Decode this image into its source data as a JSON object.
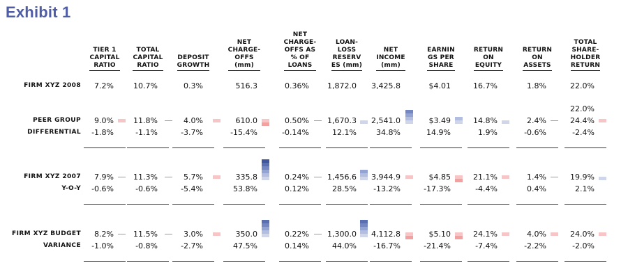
{
  "title": "Exhibit 1",
  "columns": [
    "TIER 1 CAPITAL RATIO",
    "TOTAL CAPITAL RATIO",
    "DEPOSIT GROWTH",
    "NET CHARGE-OFFS (mm)",
    "NET CHARGE-OFFS AS % OF LOANS",
    "LOAN-LOSS RESERVES (mm)",
    "NET INCOME (mm)",
    "EARNINGS PER SHARE",
    "RETURN ON EQUITY",
    "RETURN ON ASSETS",
    "TOTAL SHARE-HOLDER RETURN"
  ],
  "header_lines": [
    [
      "TIER 1",
      "CAPITAL",
      "RATIO"
    ],
    [
      "TOTAL",
      "CAPITAL",
      "RATIO"
    ],
    [
      "DEPOSIT",
      "GROWTH"
    ],
    [
      "NET",
      "CHARGE-",
      "OFFS",
      "(mm)"
    ],
    [
      "NET",
      "CHARGE-",
      "OFFS AS",
      "% OF",
      "LOANS"
    ],
    [
      "LOAN-",
      "LOSS",
      "RESERV",
      "ES (mm)"
    ],
    [
      "NET",
      "INCOME",
      "(mm)"
    ],
    [
      "EARNIN",
      "GS PER",
      "SHARE"
    ],
    [
      "RETURN",
      "ON",
      "EQUITY"
    ],
    [
      "RETURN",
      "ON",
      "ASSETS"
    ],
    [
      "TOTAL",
      "SHARE-",
      "HOLDER",
      "RETURN"
    ]
  ],
  "firm_2008": {
    "label": "FIRM XYZ 2008",
    "values": [
      "7.2%",
      "10.7%",
      "0.3%",
      "516.3",
      "0.36%",
      "1,872.0",
      "3,425.8",
      "$4.01",
      "16.7%",
      "1.8%",
      "22.0%"
    ]
  },
  "groups": [
    {
      "label": "PEER GROUP",
      "diff_label": "DIFFERENTIAL",
      "extra_top": "22.0%",
      "values": [
        "9.0%",
        "11.8%",
        "4.0%",
        "610.0",
        "0.50%",
        "1,670.3",
        "2,541.0",
        "$3.49",
        "14.8%",
        "2.4%",
        "24.4%"
      ],
      "diffs": [
        "-1.8%",
        "-1.1%",
        "-3.7%",
        "-15.4%",
        "-0.14%",
        "12.1%",
        "34.8%",
        "14.9%",
        "1.9%",
        "-0.6%",
        "-2.4%"
      ]
    },
    {
      "label": "FIRM XYZ 2007",
      "diff_label": "Y-O-Y",
      "values": [
        "7.9%",
        "11.3%",
        "5.7%",
        "335.8",
        "0.24%",
        "1,456.6",
        "3,944.9",
        "$4.85",
        "21.1%",
        "1.4%",
        "19.9%"
      ],
      "diffs": [
        "-0.6%",
        "-0.6%",
        "-5.4%",
        "53.8%",
        "0.12%",
        "28.5%",
        "-13.2%",
        "-17.3%",
        "-4.4%",
        "0.4%",
        "2.1%"
      ]
    },
    {
      "label": "FIRM XYZ BUDGET",
      "diff_label": "VARIANCE",
      "values": [
        "8.2%",
        "11.5%",
        "3.0%",
        "350.0",
        "0.22%",
        "1,300.0",
        "4,112.8",
        "$5.10",
        "24.1%",
        "4.0%",
        "24.0%"
      ],
      "diffs": [
        "-1.0%",
        "-0.8%",
        "-2.7%",
        "47.5%",
        "0.14%",
        "44.0%",
        "-16.7%",
        "-21.4%",
        "-7.4%",
        "-2.2%",
        "-2.0%"
      ]
    }
  ],
  "colors": {
    "title": "#4f5da6",
    "positive": "#5a6fb0",
    "negative": "#d40000"
  }
}
